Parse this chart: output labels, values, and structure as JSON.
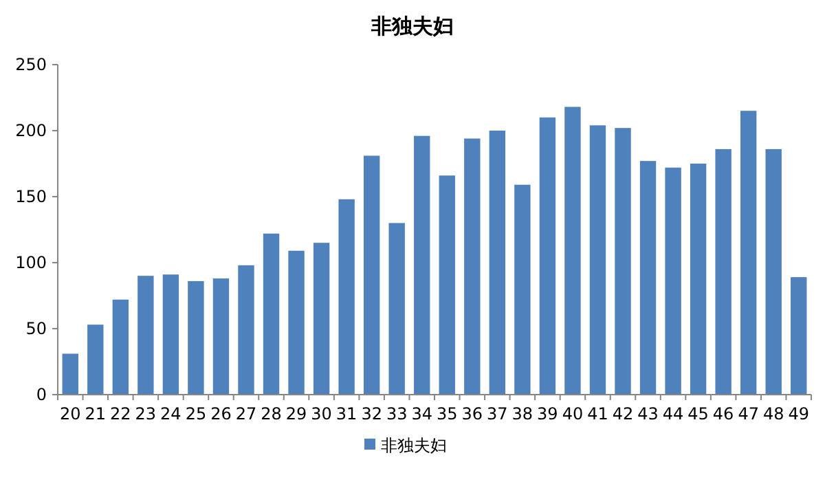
{
  "chart_data": {
    "type": "bar",
    "title": "非独夫妇",
    "categories": [
      "20",
      "21",
      "22",
      "23",
      "24",
      "25",
      "26",
      "27",
      "28",
      "29",
      "30",
      "31",
      "32",
      "33",
      "34",
      "35",
      "36",
      "37",
      "38",
      "39",
      "40",
      "41",
      "42",
      "43",
      "44",
      "45",
      "46",
      "47",
      "48",
      "49"
    ],
    "series": [
      {
        "name": "非独夫妇",
        "color": "#4f81bd",
        "values": [
          31,
          53,
          72,
          90,
          91,
          86,
          88,
          98,
          122,
          109,
          115,
          148,
          181,
          130,
          196,
          166,
          194,
          200,
          159,
          210,
          218,
          204,
          202,
          177,
          172,
          175,
          186,
          215,
          186,
          89
        ]
      }
    ],
    "ylim": [
      0,
      250
    ],
    "yticks": [
      0,
      50,
      100,
      150,
      200,
      250
    ],
    "grid": false,
    "legend": "bottom"
  }
}
